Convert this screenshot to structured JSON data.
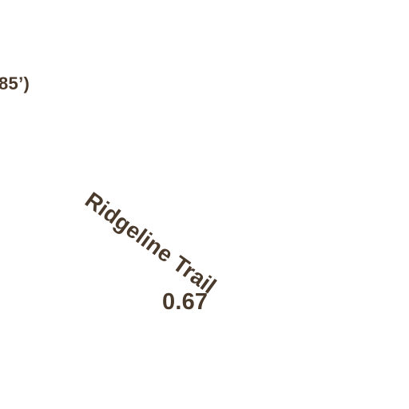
{
  "map": {
    "colors": {
      "background": "#ffffff",
      "label_text": "#4a3a2c"
    },
    "labels": {
      "elevation_fragment": "85’)",
      "trail_name": "Ridgeline Trail",
      "trail_distance": "0.67"
    }
  }
}
